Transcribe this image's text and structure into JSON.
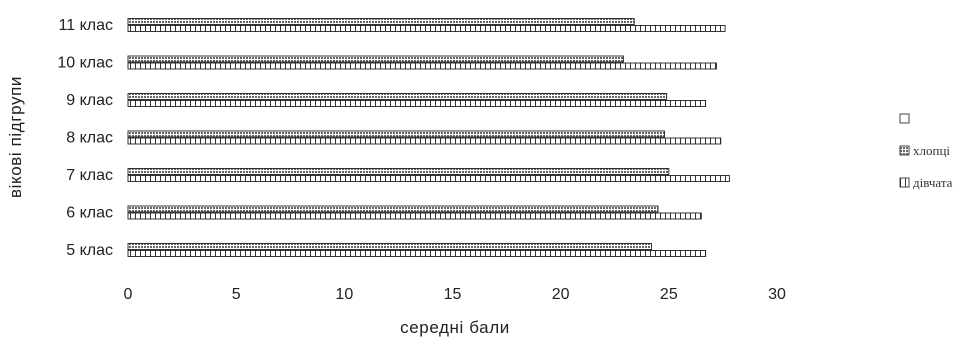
{
  "chart_data": {
    "type": "bar",
    "orientation": "horizontal",
    "categories": [
      "5 клас",
      "6 клас",
      "7 клас",
      "8 клас",
      "9 клас",
      "10 клас",
      "11 клас"
    ],
    "series": [
      {
        "name": "хлопці",
        "values": [
          24.2,
          24.5,
          25.0,
          24.8,
          24.9,
          22.9,
          23.4
        ],
        "pattern": "dense-hatch"
      },
      {
        "name": "дівчата",
        "values": [
          26.7,
          26.5,
          27.8,
          27.4,
          26.7,
          27.2,
          27.6
        ],
        "pattern": "brick"
      }
    ],
    "legend_entries": [
      "",
      "хлопці",
      "дівчата"
    ],
    "xlabel": "середні бали",
    "ylabel": "вікові підгрупи",
    "xlim": [
      0,
      30
    ],
    "xticks": [
      0,
      5,
      10,
      15,
      20,
      25,
      30
    ],
    "grid": false,
    "legend_position": "right",
    "colors": {
      "bar_outline": "#222222",
      "hatch": "#555555",
      "background": "#ffffff"
    }
  }
}
